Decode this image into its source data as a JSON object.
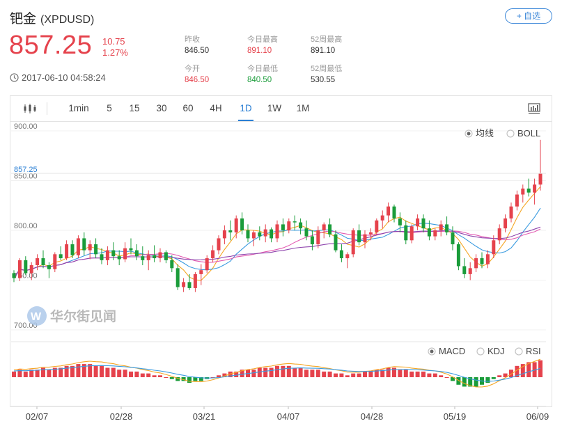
{
  "header": {
    "name": "钯金",
    "code": "(XPDUSD)",
    "price": "857.25",
    "change": "10.75",
    "change_pct": "1.27%",
    "timestamp": "2017-06-10 04:58:24",
    "add_button": "+ 自选"
  },
  "stats": [
    {
      "label": "昨收",
      "value": "846.50",
      "tone": "neutral"
    },
    {
      "label": "今日最高",
      "value": "891.10",
      "tone": "up"
    },
    {
      "label": "52周最高",
      "value": "891.10",
      "tone": "neutral"
    },
    {
      "label": "今开",
      "value": "846.50",
      "tone": "up"
    },
    {
      "label": "今日最低",
      "value": "840.50",
      "tone": "down"
    },
    {
      "label": "52周最低",
      "value": "530.55",
      "tone": "neutral"
    }
  ],
  "toolbar": {
    "tabs": [
      "1min",
      "5",
      "15",
      "30",
      "60",
      "4H",
      "1D",
      "1W",
      "1M"
    ],
    "active": "1D"
  },
  "watermark": "华尔街见闻",
  "colors": {
    "up": "#e5424c",
    "down": "#1a9c3a",
    "accent": "#2a7fd4",
    "ma5": "#f5a623",
    "ma10": "#3a9be0",
    "ma20": "#e35ab1",
    "ma30": "#8e44ad"
  },
  "chart_data": [
    {
      "type": "candlestick",
      "ylim": [
        700,
        900
      ],
      "y_ticks": [
        "900.00",
        "850.00",
        "800.00",
        "750.00",
        "700.00"
      ],
      "last_price_label": "857.25",
      "x_ticks": [
        "02/07",
        "02/28",
        "03/21",
        "04/07",
        "04/28",
        "05/19",
        "06/09"
      ],
      "indicator_options": [
        {
          "label": "均线",
          "selected": true
        },
        {
          "label": "BOLL",
          "selected": false
        }
      ],
      "ohlc": [
        [
          757,
          760,
          748,
          752
        ],
        [
          752,
          772,
          749,
          770
        ],
        [
          770,
          774,
          755,
          757
        ],
        [
          757,
          768,
          750,
          765
        ],
        [
          765,
          776,
          760,
          772
        ],
        [
          772,
          780,
          762,
          765
        ],
        [
          765,
          768,
          752,
          761
        ],
        [
          761,
          778,
          758,
          776
        ],
        [
          776,
          784,
          770,
          772
        ],
        [
          772,
          790,
          770,
          786
        ],
        [
          786,
          790,
          772,
          775
        ],
        [
          775,
          795,
          772,
          792
        ],
        [
          792,
          798,
          775,
          780
        ],
        [
          780,
          790,
          771,
          786
        ],
        [
          786,
          792,
          772,
          776
        ],
        [
          776,
          782,
          766,
          770
        ],
        [
          770,
          784,
          765,
          780
        ],
        [
          780,
          788,
          770,
          774
        ],
        [
          774,
          780,
          765,
          771
        ],
        [
          771,
          788,
          768,
          782
        ],
        [
          782,
          792,
          776,
          780
        ],
        [
          780,
          786,
          770,
          774
        ],
        [
          774,
          784,
          765,
          770
        ],
        [
          770,
          780,
          760,
          775
        ],
        [
          775,
          785,
          768,
          772
        ],
        [
          772,
          782,
          768,
          778
        ],
        [
          778,
          780,
          767,
          770
        ],
        [
          770,
          775,
          758,
          762
        ],
        [
          762,
          766,
          740,
          743
        ],
        [
          743,
          752,
          738,
          748
        ],
        [
          748,
          756,
          740,
          742
        ],
        [
          742,
          758,
          738,
          756
        ],
        [
          756,
          766,
          745,
          760
        ],
        [
          760,
          775,
          757,
          772
        ],
        [
          772,
          785,
          768,
          780
        ],
        [
          780,
          795,
          776,
          792
        ],
        [
          792,
          805,
          786,
          800
        ],
        [
          800,
          810,
          790,
          798
        ],
        [
          798,
          815,
          792,
          812
        ],
        [
          812,
          818,
          796,
          800
        ],
        [
          800,
          806,
          788,
          792
        ],
        [
          792,
          800,
          784,
          798
        ],
        [
          798,
          804,
          790,
          794
        ],
        [
          794,
          806,
          788,
          801
        ],
        [
          801,
          803,
          788,
          792
        ],
        [
          792,
          810,
          788,
          806
        ],
        [
          806,
          812,
          794,
          800
        ],
        [
          800,
          812,
          797,
          809
        ],
        [
          809,
          815,
          800,
          808
        ],
        [
          808,
          812,
          796,
          802
        ],
        [
          802,
          810,
          790,
          794
        ],
        [
          794,
          800,
          780,
          786
        ],
        [
          786,
          804,
          782,
          800
        ],
        [
          800,
          808,
          792,
          806
        ],
        [
          806,
          812,
          793,
          796
        ],
        [
          796,
          800,
          778,
          780
        ],
        [
          780,
          786,
          768,
          772
        ],
        [
          772,
          778,
          762,
          776
        ],
        [
          776,
          802,
          773,
          800
        ],
        [
          800,
          806,
          785,
          788
        ],
        [
          788,
          800,
          782,
          796
        ],
        [
          796,
          802,
          790,
          798
        ],
        [
          798,
          812,
          795,
          810
        ],
        [
          810,
          820,
          802,
          815
        ],
        [
          815,
          828,
          808,
          824
        ],
        [
          824,
          826,
          808,
          812
        ],
        [
          812,
          818,
          798,
          805
        ],
        [
          805,
          810,
          786,
          790
        ],
        [
          790,
          806,
          787,
          804
        ],
        [
          804,
          816,
          800,
          812
        ],
        [
          812,
          816,
          798,
          802
        ],
        [
          802,
          810,
          790,
          794
        ],
        [
          794,
          802,
          790,
          800
        ],
        [
          800,
          810,
          794,
          806
        ],
        [
          806,
          814,
          795,
          798
        ],
        [
          798,
          804,
          780,
          786
        ],
        [
          786,
          788,
          760,
          764
        ],
        [
          764,
          772,
          752,
          756
        ],
        [
          756,
          768,
          750,
          762
        ],
        [
          762,
          776,
          758,
          772
        ],
        [
          772,
          778,
          762,
          766
        ],
        [
          766,
          780,
          762,
          776
        ],
        [
          776,
          795,
          772,
          790
        ],
        [
          790,
          806,
          786,
          802
        ],
        [
          802,
          816,
          798,
          812
        ],
        [
          812,
          828,
          808,
          824
        ],
        [
          824,
          840,
          820,
          836
        ],
        [
          836,
          846,
          828,
          842
        ],
        [
          842,
          852,
          834,
          838
        ],
        [
          838,
          852,
          826,
          846
        ],
        [
          846,
          891,
          840,
          857
        ]
      ],
      "ma_lines": [
        {
          "name": "MA5",
          "color": "#f5a623",
          "period": 5
        },
        {
          "name": "MA10",
          "color": "#3a9be0",
          "period": 10
        },
        {
          "name": "MA20",
          "color": "#e35ab1",
          "period": 20
        },
        {
          "name": "MA30",
          "color": "#8e44ad",
          "period": 30
        }
      ]
    },
    {
      "type": "macd",
      "indicator_options": [
        {
          "label": "MACD",
          "selected": true
        },
        {
          "label": "KDJ",
          "selected": false
        },
        {
          "label": "RSI",
          "selected": false
        }
      ],
      "histogram": [
        3,
        4,
        3,
        4,
        4,
        5,
        4,
        5,
        5,
        6,
        6,
        7,
        7,
        7,
        6,
        6,
        5,
        5,
        4,
        4,
        3,
        3,
        2,
        2,
        1,
        1,
        0,
        -1,
        -2,
        -2,
        -3,
        -2,
        -2,
        -1,
        0,
        1,
        2,
        3,
        3,
        4,
        4,
        4,
        5,
        5,
        5,
        6,
        6,
        6,
        5,
        5,
        4,
        4,
        4,
        3,
        3,
        2,
        2,
        1,
        2,
        2,
        3,
        3,
        4,
        4,
        5,
        5,
        4,
        4,
        3,
        3,
        3,
        2,
        2,
        1,
        0,
        -2,
        -4,
        -5,
        -5,
        -5,
        -4,
        -3,
        -1,
        1,
        2,
        4,
        6,
        7,
        8,
        8,
        9
      ]
    }
  ]
}
